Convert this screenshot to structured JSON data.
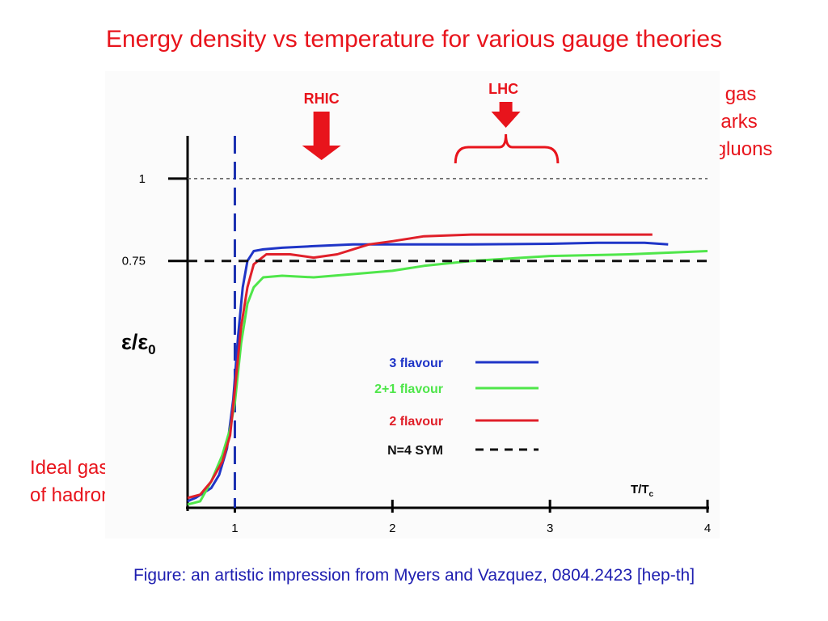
{
  "page": {
    "title": "Energy density vs temperature for various gauge theories",
    "note_quarks": [
      "Ideal gas",
      "of quarks",
      "and gluons"
    ],
    "note_hadrons": [
      "Ideal gas",
      "of hadrons"
    ],
    "caption": "Figure: an artistic impression from Myers and Vazquez, 0804.2423 [hep-th]",
    "colors": {
      "title": "#e8141c",
      "caption": "#1e1eb0",
      "arrow": "#e8141c"
    }
  },
  "chart_data": {
    "type": "line",
    "title": "",
    "xlabel": "T/T_c",
    "xlabel_main": "T/T",
    "xlabel_sub": "c",
    "ylabel": "ε/ε0",
    "ylabel_main": "ε/ε",
    "ylabel_sub": "0",
    "xlim": [
      0.7,
      4.0
    ],
    "ylim": [
      0,
      1.13
    ],
    "x_ticks": [
      1,
      2,
      3,
      4
    ],
    "x_tick_labels": [
      "1",
      "2",
      "3",
      "4"
    ],
    "y_ticks": [
      1,
      0.75
    ],
    "y_tick_labels": [
      "1",
      "0.75"
    ],
    "grid": false,
    "legend_position": "center-right",
    "reference_lines": [
      {
        "orientation": "horizontal",
        "value": 1.0,
        "style": "dotted",
        "color": "#555555"
      },
      {
        "orientation": "vertical",
        "value": 1.0,
        "style": "dashed",
        "color": "#1a2fb0"
      }
    ],
    "annotations": [
      {
        "label": "RHIC",
        "x": 1.55,
        "kind": "arrow",
        "color": "#e8141c"
      },
      {
        "label": "LHC",
        "x": 2.72,
        "x_range": [
          2.4,
          3.05
        ],
        "kind": "arrow-brace",
        "color": "#e8141c"
      }
    ],
    "series": [
      {
        "name": "3 flavour",
        "color": "#1f35c7",
        "style": "solid",
        "x": [
          0.7,
          0.75,
          0.85,
          0.9,
          0.95,
          0.99,
          1.02,
          1.05,
          1.08,
          1.12,
          1.18,
          1.3,
          1.5,
          1.75,
          2.0,
          2.5,
          3.0,
          3.3,
          3.6,
          3.75
        ],
        "y": [
          0.02,
          0.03,
          0.06,
          0.1,
          0.18,
          0.33,
          0.52,
          0.67,
          0.75,
          0.78,
          0.785,
          0.79,
          0.795,
          0.8,
          0.8,
          0.8,
          0.802,
          0.805,
          0.805,
          0.8
        ]
      },
      {
        "name": "2+1 flavour",
        "color": "#4fe64a",
        "style": "solid",
        "x": [
          0.7,
          0.78,
          0.85,
          0.92,
          0.97,
          1.0,
          1.04,
          1.08,
          1.12,
          1.18,
          1.3,
          1.5,
          1.75,
          2.0,
          2.2,
          2.5,
          3.0,
          3.5,
          4.0
        ],
        "y": [
          0.01,
          0.02,
          0.08,
          0.16,
          0.24,
          0.32,
          0.5,
          0.62,
          0.67,
          0.7,
          0.705,
          0.7,
          0.71,
          0.72,
          0.735,
          0.75,
          0.765,
          0.77,
          0.78
        ]
      },
      {
        "name": "2 flavour",
        "color": "#e0202a",
        "style": "solid",
        "x": [
          0.7,
          0.78,
          0.85,
          0.92,
          0.97,
          1.0,
          1.04,
          1.08,
          1.12,
          1.2,
          1.35,
          1.5,
          1.65,
          1.85,
          2.0,
          2.2,
          2.5,
          2.8,
          3.2,
          3.65
        ],
        "y": [
          0.03,
          0.04,
          0.08,
          0.14,
          0.22,
          0.36,
          0.55,
          0.67,
          0.74,
          0.77,
          0.77,
          0.76,
          0.77,
          0.8,
          0.81,
          0.825,
          0.83,
          0.83,
          0.83,
          0.83
        ]
      },
      {
        "name": "N=4 SYM",
        "color": "#111111",
        "style": "dashed",
        "x": [
          0.7,
          4.0
        ],
        "y": [
          0.75,
          0.75
        ]
      }
    ]
  }
}
